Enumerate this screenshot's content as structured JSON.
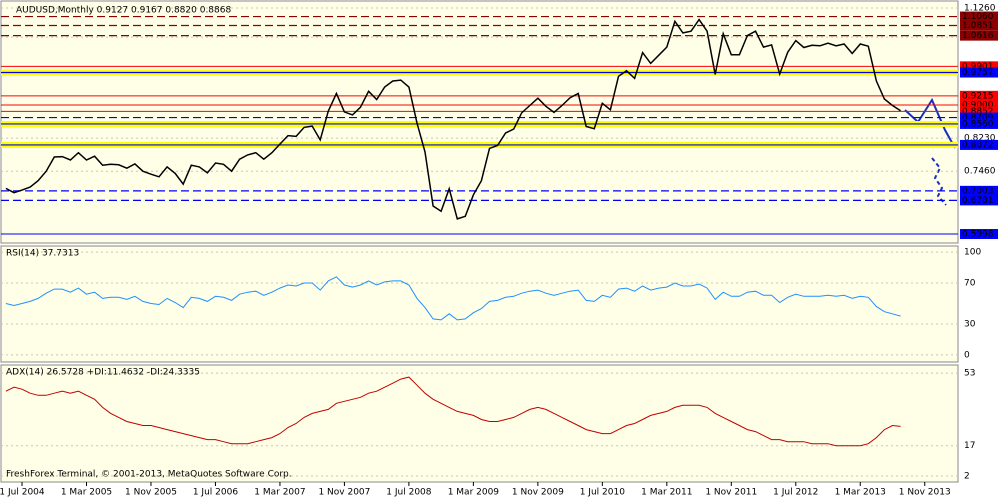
{
  "chart_data": [
    {
      "type": "line",
      "title": "AUDUSD,Monthly  0.9127 0.9167 0.8820 0.8868",
      "color": "#000000",
      "categories": [
        null,
        null,
        "1 Jul 2004",
        null,
        null,
        null,
        null,
        null,
        null,
        null,
        "1 Mar 2005",
        null,
        null,
        null,
        null,
        null,
        null,
        null,
        "1 Nov 2005",
        null,
        null,
        null,
        null,
        null,
        null,
        null,
        "1 Jul 2006",
        null,
        null,
        null,
        null,
        null,
        null,
        null,
        "1 Mar 2007",
        null,
        null,
        null,
        null,
        null,
        null,
        null,
        "1 Nov 2007",
        null,
        null,
        null,
        null,
        null,
        null,
        null,
        "1 Jul 2008",
        null,
        null,
        null,
        null,
        null,
        null,
        null,
        "1 Mar 2009",
        null,
        null,
        null,
        null,
        null,
        null,
        null,
        "1 Nov 2009",
        null,
        null,
        null,
        null,
        null,
        null,
        null,
        "1 Jul 2010",
        null,
        null,
        null,
        null,
        null,
        null,
        null,
        "1 Mar 2011",
        null,
        null,
        null,
        null,
        null,
        null,
        null,
        "1 Nov 2011",
        null,
        null,
        null,
        null,
        null,
        null,
        null,
        "1 Jul 2012",
        null,
        null,
        null,
        null,
        null,
        null,
        null,
        "1 Mar 2013",
        null,
        null,
        null,
        null,
        null,
        null,
        null,
        "1 Nov 2013",
        null,
        null,
        null,
        null
      ],
      "values": [
        0.706,
        0.696,
        0.702,
        0.709,
        0.724,
        0.746,
        0.779,
        0.78,
        0.772,
        0.789,
        0.772,
        0.781,
        0.76,
        0.762,
        0.761,
        0.753,
        0.763,
        0.746,
        0.739,
        0.733,
        0.756,
        0.741,
        0.716,
        0.76,
        0.756,
        0.742,
        0.765,
        0.762,
        0.746,
        0.774,
        0.784,
        0.789,
        0.774,
        0.789,
        0.809,
        0.829,
        0.827,
        0.848,
        0.851,
        0.819,
        0.886,
        0.927,
        0.884,
        0.877,
        0.895,
        0.932,
        0.913,
        0.942,
        0.956,
        0.958,
        0.942,
        0.858,
        0.791,
        0.665,
        0.653,
        0.705,
        0.635,
        0.641,
        0.691,
        0.724,
        0.799,
        0.806,
        0.835,
        0.844,
        0.882,
        0.899,
        0.916,
        0.897,
        0.883,
        0.899,
        0.917,
        0.927,
        0.85,
        0.845,
        0.904,
        0.889,
        0.967,
        0.98,
        0.962,
        1.022,
        0.997,
        1.016,
        1.035,
        1.095,
        1.068,
        1.072,
        1.099,
        1.072,
        0.971,
        1.066,
        1.017,
        1.017,
        1.062,
        1.072,
        1.035,
        1.04,
        0.972,
        1.023,
        1.05,
        1.034,
        1.039,
        1.038,
        1.044,
        1.038,
        1.042,
        1.02,
        1.042,
        1.037,
        0.956,
        0.914,
        0.899,
        0.8868,
        null,
        null,
        null,
        null,
        null,
        null,
        null
      ],
      "ylim": [
        0.5789,
        1.1422
      ],
      "yticks": [
        {
          "value": 1.126,
          "label": "1.1260"
        },
        {
          "value": 1.058,
          "label": "1.0580"
        },
        {
          "value": 0.823,
          "label": "0.8230"
        },
        {
          "value": 0.746,
          "label": "0.7460"
        }
      ],
      "levels": [
        {
          "value": 1.106,
          "label": "1.1060",
          "color": "#8b0000",
          "style": "dashed"
        },
        {
          "value": 1.0851,
          "label": "1.0851",
          "color": "#8b0000",
          "style": "dashed"
        },
        {
          "value": 1.0616,
          "label": "1.0616",
          "color": "#8b0000",
          "style": "dashed"
        },
        {
          "value": 0.9901,
          "label": "0.9901",
          "color": "#ff0000",
          "style": "solid"
        },
        {
          "value": 0.9757,
          "label": "0.9757",
          "color": "#0000ff",
          "style": "band"
        },
        {
          "value": 0.9215,
          "label": "0.9215",
          "color": "#ff0000",
          "style": "solid"
        },
        {
          "value": 0.9,
          "label": "0.9000",
          "color": "#ff0000",
          "style": "solid"
        },
        {
          "value": 0.8852,
          "label": "0.8852",
          "color": "#ff0000",
          "style": "solid"
        },
        {
          "value": 0.8709,
          "label": "0.8709",
          "color": "#0000ff",
          "style": "dashed"
        },
        {
          "value": 0.856,
          "label": "0.8560",
          "color": "#0000ff",
          "style": "band"
        },
        {
          "value": 0.8072,
          "label": "0.8072",
          "color": "#0000ff",
          "style": "band"
        },
        {
          "value": 0.7003,
          "label": "0.7003",
          "color": "#0000ff",
          "style": "dashed"
        },
        {
          "value": 0.6781,
          "label": "0.6781",
          "color": "#0000ff",
          "style": "dashed"
        },
        {
          "value": 0.5998,
          "label": "0.5998",
          "color": "#0000ff",
          "style": "solid"
        }
      ]
    },
    {
      "type": "line",
      "title": "RSI(14) 37.7313",
      "color": "#1e90ff",
      "values": [
        50,
        48,
        50,
        52,
        55,
        60,
        64,
        64,
        61,
        65,
        59,
        61,
        55,
        56,
        56,
        54,
        57,
        52,
        50,
        49,
        55,
        51,
        46,
        56,
        55,
        52,
        57,
        56,
        53,
        59,
        61,
        62,
        58,
        61,
        65,
        68,
        67,
        70,
        70,
        63,
        72,
        76,
        68,
        66,
        68,
        72,
        68,
        71,
        72,
        72,
        68,
        55,
        46,
        35,
        34,
        40,
        34,
        35,
        41,
        45,
        52,
        53,
        56,
        57,
        60,
        62,
        63,
        60,
        58,
        60,
        62,
        63,
        53,
        52,
        58,
        56,
        64,
        65,
        62,
        67,
        63,
        65,
        66,
        70,
        67,
        67,
        69,
        65,
        54,
        61,
        57,
        57,
        61,
        62,
        58,
        58,
        51,
        56,
        59,
        57,
        57,
        57,
        58,
        57,
        58,
        55,
        57,
        56,
        47,
        42,
        40,
        37.7313
      ],
      "ylim": [
        -7,
        106
      ],
      "yticks": [
        0,
        30,
        70,
        100
      ]
    },
    {
      "type": "line",
      "title": "ADX(14) 26.5728 +DI:11.4632 -DI:24.3335",
      "color": "#c00000",
      "annotation": "FreshForex Terminal, © 2001-2013, MetaQuotes Software Corp.",
      "values": [
        44,
        46,
        45,
        43,
        42,
        42,
        43,
        44,
        43,
        44,
        42,
        40,
        36,
        33,
        31,
        29,
        28,
        27,
        27,
        26,
        25,
        24,
        23,
        22,
        21,
        20,
        20,
        19,
        18,
        18,
        18,
        19,
        20,
        21,
        23,
        26,
        28,
        31,
        33,
        34,
        35,
        38,
        39,
        40,
        41,
        43,
        44,
        46,
        48,
        50,
        51,
        47,
        43,
        40,
        38,
        36,
        34,
        33,
        32,
        30,
        29,
        29,
        30,
        31,
        33,
        35,
        36,
        35,
        33,
        31,
        29,
        27,
        25,
        24,
        23,
        23,
        25,
        27,
        28,
        30,
        32,
        33,
        34,
        36,
        37,
        37,
        37,
        36,
        33,
        31,
        29,
        27,
        25,
        24,
        22,
        20,
        20,
        19,
        19,
        19,
        18,
        18,
        18,
        17,
        17,
        17,
        17,
        18,
        21,
        25,
        27,
        26.5728
      ],
      "ylim": [
        -1,
        57
      ],
      "yticks": [
        2,
        17,
        53
      ]
    }
  ]
}
